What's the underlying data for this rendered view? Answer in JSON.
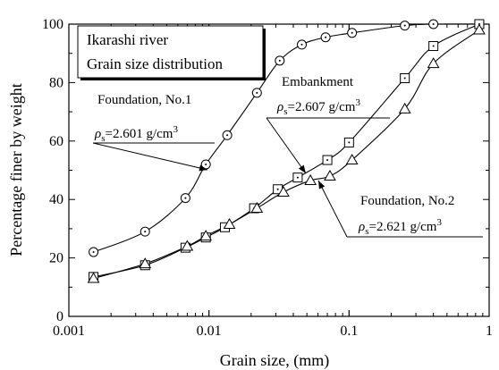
{
  "chart_data": {
    "type": "scatter",
    "title": "",
    "xlabel": "Grain size,  (mm)",
    "ylabel": "Percentage finer by weight",
    "xscale": "log",
    "xlim": [
      0.001,
      1
    ],
    "ylim": [
      0,
      100
    ],
    "x_ticks": [
      0.001,
      0.01,
      0.1,
      1
    ],
    "x_tick_labels": [
      "0.001",
      "0.01",
      "0.1",
      "1"
    ],
    "y_ticks": [
      0,
      20,
      40,
      60,
      80,
      100
    ],
    "y_tick_labels": [
      "0",
      "20",
      "40",
      "60",
      "80",
      "100"
    ],
    "info_box": [
      "Ikarashi river",
      "Grain size distribution"
    ],
    "series": [
      {
        "name": "Foundation, No.1",
        "density_label": "=2.601 g/cm",
        "marker": "circle-dot",
        "x": [
          0.0015,
          0.0035,
          0.0068,
          0.0095,
          0.0135,
          0.022,
          0.032,
          0.046,
          0.068,
          0.105,
          0.25,
          0.4,
          0.85
        ],
        "y": [
          22,
          29,
          40.5,
          52,
          62,
          76.5,
          87.5,
          93,
          95.5,
          97,
          99.5,
          100,
          100
        ]
      },
      {
        "name": "Embankment",
        "density_label": "=2.607 g/cm",
        "marker": "square-dot",
        "x": [
          0.0015,
          0.0035,
          0.0068,
          0.0095,
          0.013,
          0.021,
          0.031,
          0.043,
          0.07,
          0.1,
          0.25,
          0.4,
          0.85
        ],
        "y": [
          13.5,
          17.5,
          23.5,
          27,
          30.5,
          37,
          43.5,
          47.5,
          53.5,
          59.5,
          81.5,
          92.5,
          100
        ]
      },
      {
        "name": "Foundation, No.2",
        "density_label": "=2.621 g/cm",
        "marker": "triangle",
        "x": [
          0.0015,
          0.0035,
          0.007,
          0.0095,
          0.014,
          0.022,
          0.034,
          0.053,
          0.073,
          0.105,
          0.25,
          0.4,
          0.85
        ],
        "y": [
          13,
          18,
          24,
          27.5,
          31.5,
          37,
          42.5,
          46.5,
          48,
          53.5,
          71,
          86.5,
          98
        ]
      }
    ],
    "rho_symbol": "ρ",
    "rho_subscript": "s",
    "unit_superscript": "3"
  }
}
